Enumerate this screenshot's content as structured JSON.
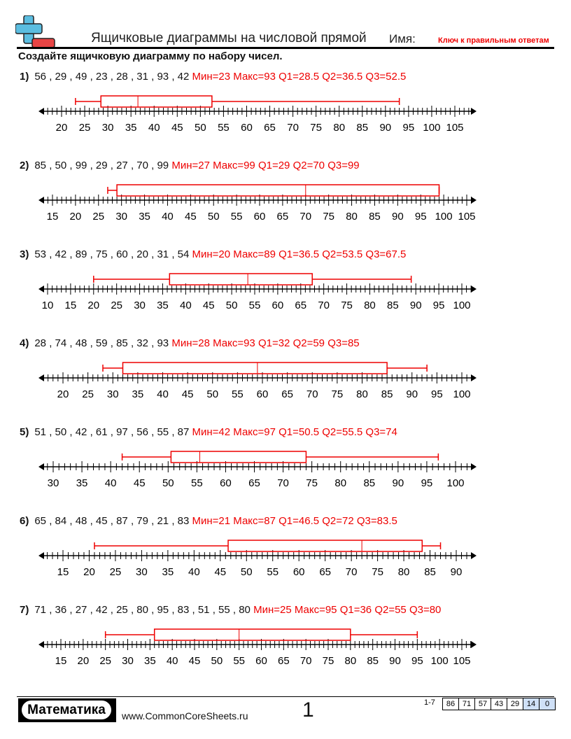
{
  "header": {
    "title": "Ящичковые диаграммы на числовой прямой",
    "name_label": "Имя:",
    "answer_key": "Ключ к правильным ответам"
  },
  "instructions": "Создайте ящичковую диаграмму по набору чисел.",
  "colors": {
    "answer": "#ee0000",
    "box": "#ee0000",
    "logo_blue": "#5bbde0",
    "logo_red": "#e84545",
    "score_highlight": "#cfe0f7"
  },
  "problems": [
    {
      "number": "1)",
      "data": "56 , 29 , 49 , 23 , 28 , 31 , 93 , 42",
      "answer": "Мин=23 Макс=93 Q1=28.5 Q2=36.5 Q3=52.5",
      "min": 23,
      "max": 93,
      "q1": 28.5,
      "q2": 36.5,
      "q3": 52.5,
      "axis_start": 20,
      "axis_end": 105
    },
    {
      "number": "2)",
      "data": "85 , 50 , 99 , 29 , 27 , 70 , 99",
      "answer": "Мин=27 Макс=99 Q1=29 Q2=70 Q3=99",
      "min": 27,
      "max": 99,
      "q1": 29,
      "q2": 70,
      "q3": 99,
      "axis_start": 15,
      "axis_end": 105
    },
    {
      "number": "3)",
      "data": "53 , 42 , 89 , 75 , 60 , 20 , 31 , 54",
      "answer": "Мин=20 Макс=89 Q1=36.5 Q2=53.5 Q3=67.5",
      "min": 20,
      "max": 89,
      "q1": 36.5,
      "q2": 53.5,
      "q3": 67.5,
      "axis_start": 10,
      "axis_end": 100
    },
    {
      "number": "4)",
      "data": "28 , 74 , 48 , 59 , 85 , 32 , 93",
      "answer": "Мин=28 Макс=93 Q1=32 Q2=59 Q3=85",
      "min": 28,
      "max": 93,
      "q1": 32,
      "q2": 59,
      "q3": 85,
      "axis_start": 20,
      "axis_end": 100
    },
    {
      "number": "5)",
      "data": "51 , 50 , 42 , 61 , 97 , 56 , 55 , 87",
      "answer": "Мин=42 Макс=97 Q1=50.5 Q2=55.5 Q3=74",
      "min": 42,
      "max": 97,
      "q1": 50.5,
      "q2": 55.5,
      "q3": 74,
      "axis_start": 30,
      "axis_end": 100
    },
    {
      "number": "6)",
      "data": "65 , 84 , 48 , 45 , 87 , 79 , 21 , 83",
      "answer": "Мин=21 Макс=87 Q1=46.5 Q2=72 Q3=83.5",
      "min": 21,
      "max": 87,
      "q1": 46.5,
      "q2": 72,
      "q3": 83.5,
      "axis_start": 15,
      "axis_end": 90
    },
    {
      "number": "7)",
      "data": "71 , 36 , 27 , 42 , 25 , 80 , 95 , 83 , 51 , 55 , 80",
      "answer": "Мин=25 Макс=95 Q1=36 Q2=55 Q3=80",
      "min": 25,
      "max": 95,
      "q1": 36,
      "q2": 55,
      "q3": 80,
      "axis_start": 15,
      "axis_end": 105
    }
  ],
  "footer": {
    "brand": "Математика",
    "url": "www.CommonCoreSheets.ru",
    "page": "1",
    "score_range": "1-7",
    "scores": [
      "86",
      "71",
      "57",
      "43",
      "29",
      "14",
      "0"
    ]
  }
}
